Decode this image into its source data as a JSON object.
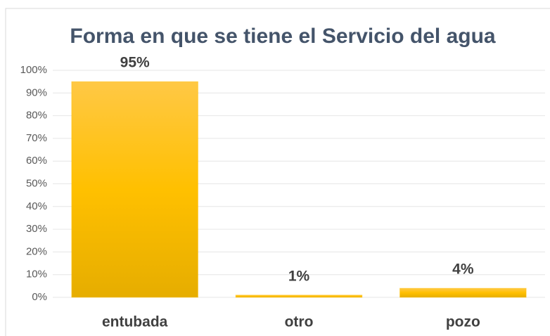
{
  "chart_data": {
    "type": "bar",
    "title": "Forma en que se tiene el Servicio del agua",
    "categories": [
      "entubada",
      "otro",
      "pozo"
    ],
    "values": [
      95,
      1,
      4
    ],
    "value_labels": [
      "95%",
      "1%",
      "4%"
    ],
    "color": "#ffc000",
    "ylim": [
      0,
      100
    ],
    "yticks": [
      {
        "value": 0,
        "label": "0%"
      },
      {
        "value": 10,
        "label": "10%"
      },
      {
        "value": 20,
        "label": "20%"
      },
      {
        "value": 30,
        "label": "30%"
      },
      {
        "value": 40,
        "label": "40%"
      },
      {
        "value": 50,
        "label": "50%"
      },
      {
        "value": 60,
        "label": "60%"
      },
      {
        "value": 70,
        "label": "70%"
      },
      {
        "value": 80,
        "label": "80%"
      },
      {
        "value": 90,
        "label": "90%"
      },
      {
        "value": 100,
        "label": "100%"
      }
    ],
    "grid": true
  }
}
